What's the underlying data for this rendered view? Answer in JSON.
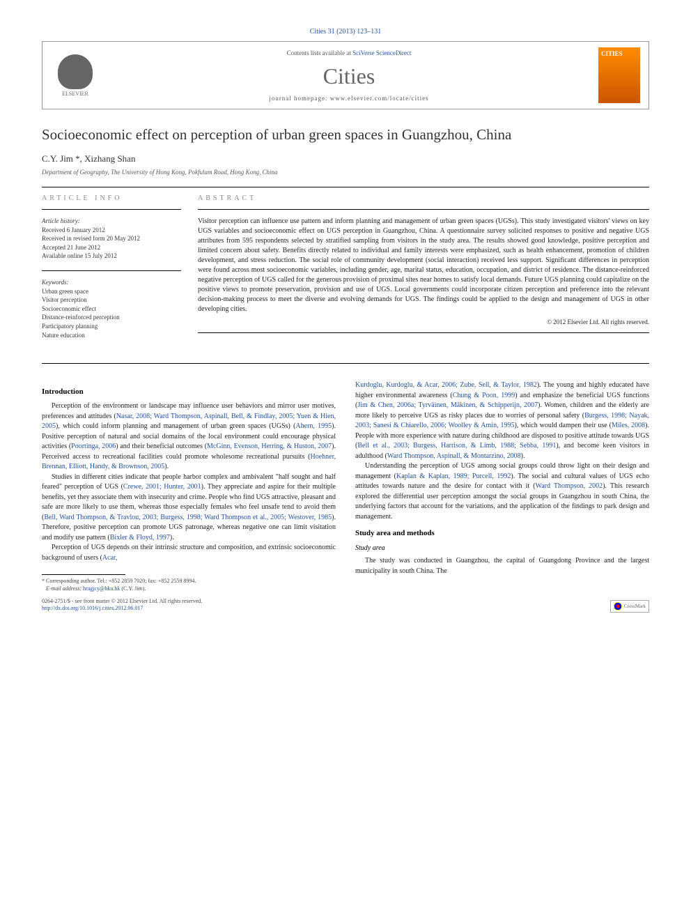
{
  "journal_ref": "Cities 31 (2013) 123–131",
  "header": {
    "elsevier": "ELSEVIER",
    "contents_prefix": "Contents lists available at ",
    "contents_link": "SciVerse ScienceDirect",
    "journal_name": "Cities",
    "homepage_prefix": "journal homepage: ",
    "homepage_url": "www.elsevier.com/locate/cities",
    "cover_label": "CITIES"
  },
  "article": {
    "title": "Socioeconomic effect on perception of urban green spaces in Guangzhou, China",
    "authors": "C.Y. Jim *, Xizhang Shan",
    "affiliation": "Department of Geography, The University of Hong Kong, Pokfulam Road, Hong Kong, China"
  },
  "info": {
    "label": "ARTICLE INFO",
    "history_head": "Article history:",
    "history": [
      "Received 6 January 2012",
      "Received in revised form 20 May 2012",
      "Accepted 21 June 2012",
      "Available online 15 July 2012"
    ],
    "keywords_head": "Keywords:",
    "keywords": [
      "Urban green space",
      "Visitor perception",
      "Socioeconomic effect",
      "Distance-reinforced perception",
      "Participatory planning",
      "Nature education"
    ]
  },
  "abstract": {
    "label": "ABSTRACT",
    "text": "Visitor perception can influence use pattern and inform planning and management of urban green spaces (UGSs). This study investigated visitors' views on key UGS variables and socioeconomic effect on UGS perception in Guangzhou, China. A questionnaire survey solicited responses to positive and negative UGS attributes from 595 respondents selected by stratified sampling from visitors in the study area. The results showed good knowledge, positive perception and limited concern about safety. Benefits directly related to individual and family interests were emphasized, such as health enhancement, promotion of children development, and stress reduction. The social role of community development (social interaction) received less support. Significant differences in perception were found across most socioeconomic variables, including gender, age, marital status, education, occupation, and district of residence. The distance-reinforced negative perception of UGS called for the generous provision of proximal sites near homes to satisfy local demands. Future UGS planning could capitalize on the positive views to promote preservation, provision and use of UGS. Local governments could incorporate citizen perception and preference into the relevant decision-making process to meet the diverse and evolving demands for UGS. The findings could be applied to the design and management of UGS in other developing cities.",
    "copyright": "© 2012 Elsevier Ltd. All rights reserved."
  },
  "body": {
    "intro_head": "Introduction",
    "p1_a": "Perception of the environment or landscape may influence user behaviors and mirror user motives, preferences and attitudes (",
    "p1_ref1": "Nasar, 2008; Ward Thompson, Aspinall, Bell, & Findlay, 2005; Yuen & Hien, 2005",
    "p1_b": "), which could inform planning and management of urban green spaces (UGSs) (",
    "p1_ref2": "Ahern, 1995",
    "p1_c": "). Positive perception of natural and social domains of the local environment could encourage physical activities (",
    "p1_ref3": "Poortinga, 2006",
    "p1_d": ") and their beneficial outcomes (",
    "p1_ref4": "McGinn, Evenson, Herring, & Huston, 2007",
    "p1_e": "). Perceived access to recreational facilities could promote wholesome recreational pursuits (",
    "p1_ref5": "Hoehner, Brennan, Elliott, Handy, & Brownson, 2005",
    "p1_f": ").",
    "p2_a": "Studies in different cities indicate that people harbor complex and ambivalent \"half sought and half feared\" perception of UGS (",
    "p2_ref1": "Crewe, 2001; Hunter, 2001",
    "p2_b": "). They appreciate and aspire for their multiple benefits, yet they associate them with insecurity and crime. People who find UGS attractive, pleasant and safe are more likely to use them, whereas those especially females who feel unsafe tend to avoid them (",
    "p2_ref2": "Bell, Ward Thompson, & Travlou, 2003; Burgess, 1998; Ward Thompson et al., 2005; Westover, 1985",
    "p2_c": "). Therefore, positive perception can promote UGS patronage, whereas negative one can limit visitation and modify use pattern (",
    "p2_ref3": "Bixler & Floyd, 1997",
    "p2_d": ").",
    "p3_a": "Perception of UGS depends on their intrinsic structure and composition, and extrinsic socioeconomic background of users (",
    "p3_ref1": "Acar,",
    "p3_ref2": "Kurdoglu, Kurdoglu, & Acar, 2006; Zube, Sell, & Taylor, 1982",
    "p3_b": "). The young and highly educated have higher environmental awareness (",
    "p3_ref3": "Chung & Poon, 1999",
    "p3_c": ") and emphasize the beneficial UGS functions (",
    "p3_ref4": "Jim & Chen, 2006a; Tyrväinen, Mäkinen, & Schipperijn, 2007",
    "p3_d": "). Women, children and the elderly are more likely to perceive UGS as risky places due to worries of personal safety (",
    "p3_ref5": "Burgess, 1998; Nayak, 2003; Sanesi & Chiarello, 2006; Woolley & Amin, 1995",
    "p3_e": "), which would dampen their use (",
    "p3_ref6": "Miles, 2008",
    "p3_f": "). People with more experience with nature during childhood are disposed to positive attitude towards UGS (",
    "p3_ref7": "Bell et al., 2003; Burgess, Harrison, & Limb, 1988; Sebba, 1991",
    "p3_g": "), and become keen visitors in adulthood (",
    "p3_ref8": "Ward Thompson, Aspinall, & Montarzino, 2008",
    "p3_h": ").",
    "p4_a": "Understanding the perception of UGS among social groups could throw light on their design and management (",
    "p4_ref1": "Kaplan & Kaplan, 1989; Purcell, 1992",
    "p4_b": "). The social and cultural values of UGS echo attitudes towards nature and the desire for contact with it (",
    "p4_ref2": "Ward Thompson, 2002",
    "p4_c": "). This research explored the differential user perception amongst the social groups in Guangzhou in south China, the underlying factors that account for the variations, and the application of the findings to park design and management.",
    "methods_head": "Study area and methods",
    "study_area_head": "Study area",
    "p5": "The study was conducted in Guangzhou, the capital of Guangdong Province and the largest municipality in south China. The"
  },
  "footnote": {
    "corr": "* Corresponding author. Tel.: +852 2859 7020; fax: +852 2559 8994.",
    "email_label": "E-mail address:",
    "email": "hragjcy@hku.hk",
    "email_who": "(C.Y. Jim)."
  },
  "footer": {
    "line1": "0264-2751/$ - see front matter © 2012 Elsevier Ltd. All rights reserved.",
    "doi": "http://dx.doi.org/10.1016/j.cities.2012.06.017",
    "crossmark": "CrossMark"
  }
}
